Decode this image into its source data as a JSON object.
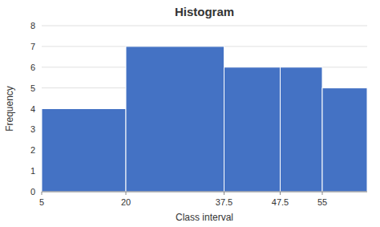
{
  "chart_data": {
    "type": "histogram",
    "title": "Histogram",
    "x_label": "Class interval",
    "y_label": "Frequency",
    "bins": [
      5,
      20,
      37.5,
      47.5,
      55,
      63
    ],
    "values": [
      4,
      7,
      6,
      6,
      5
    ],
    "color": "#4472C4",
    "xlim": [
      5,
      63
    ],
    "xticks": [
      5,
      20,
      37.5,
      47.5,
      55
    ],
    "ylim": [
      0,
      8
    ],
    "yticks": [
      0,
      1,
      2,
      3,
      4,
      5,
      6,
      7,
      8
    ],
    "grid": true
  }
}
